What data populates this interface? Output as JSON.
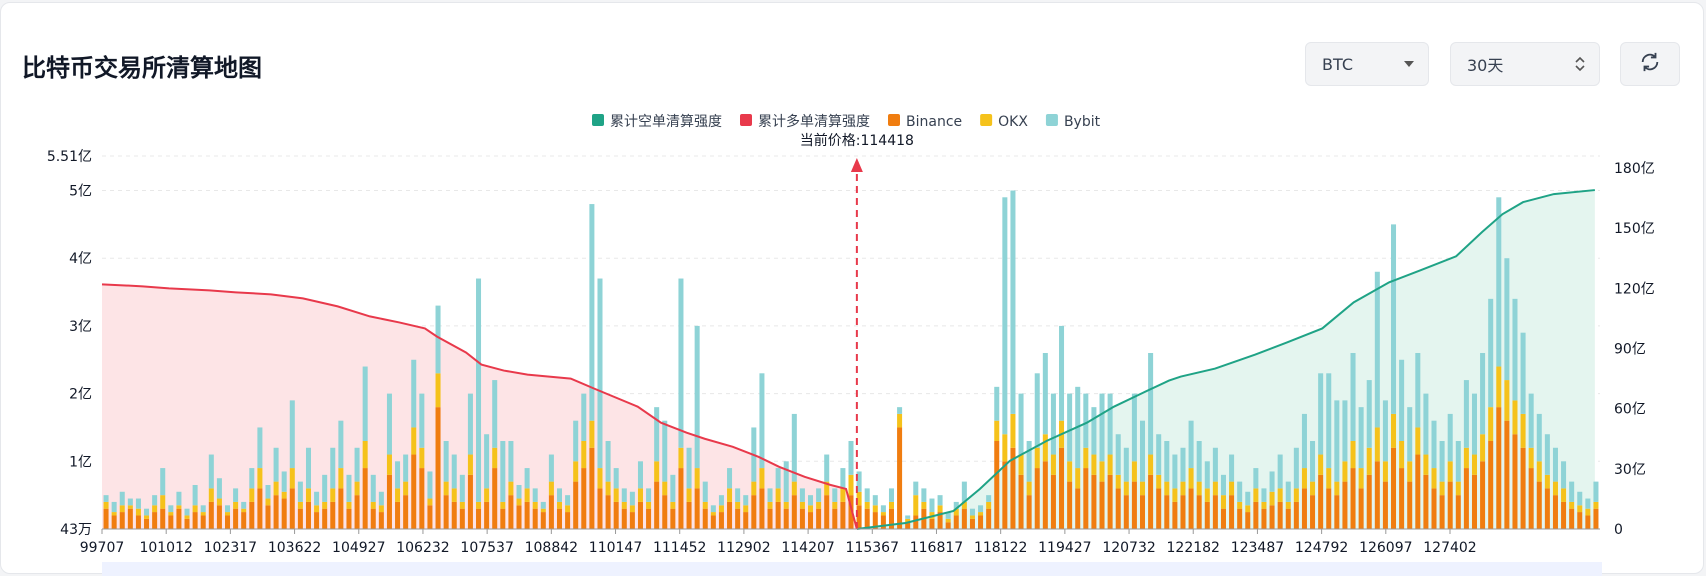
{
  "header": {
    "title": "比特币交易所清算地图",
    "asset_select": "BTC",
    "range_select": "30天"
  },
  "colors": {
    "short_cum": "#1fa386",
    "long_cum": "#e8394b",
    "binance": "#f07d10",
    "okx": "#f5c21b",
    "bybit": "#8ed3d6",
    "short_area": "#e4f5ef",
    "long_area": "#fde4e6",
    "current_price": "#e8394b"
  },
  "chart_data": {
    "type": "bar",
    "title": "比特币交易所清算地图",
    "current_price_label": "当前价格:114418",
    "current_price": 114418,
    "legend": [
      "累计空单清算强度",
      "累计多单清算强度",
      "Binance",
      "OKX",
      "Bybit"
    ],
    "x_tick_labels": [
      "99707",
      "101012",
      "102317",
      "103622",
      "104927",
      "106232",
      "107537",
      "108842",
      "110147",
      "111452",
      "112902",
      "114207",
      "115367",
      "116817",
      "118122",
      "119427",
      "120732",
      "122182",
      "123487",
      "124792",
      "126097",
      "127402"
    ],
    "x_range": [
      99707,
      128900
    ],
    "y_left": {
      "ticks": [
        "5.51亿",
        "5亿",
        "4亿",
        "3亿",
        "2亿",
        "1亿",
        "43万"
      ],
      "values": [
        5.51,
        5,
        4,
        3,
        2,
        1,
        0
      ]
    },
    "y_right": {
      "ticks": [
        "180亿",
        "150亿",
        "120亿",
        "90亿",
        "60亿",
        "30亿",
        "0"
      ],
      "values": [
        180,
        150,
        120,
        90,
        60,
        30,
        0
      ]
    },
    "unit_left": "亿",
    "unit_right": "亿",
    "long_cumulative": {
      "name": "累计多单清算强度",
      "points": [
        [
          99707,
          122
        ],
        [
          100500,
          121
        ],
        [
          101012,
          120
        ],
        [
          101800,
          119
        ],
        [
          102317,
          118
        ],
        [
          103000,
          117
        ],
        [
          103622,
          115
        ],
        [
          104300,
          111
        ],
        [
          104927,
          106
        ],
        [
          105500,
          103
        ],
        [
          106000,
          100
        ],
        [
          106232,
          96
        ],
        [
          106800,
          88
        ],
        [
          107100,
          82
        ],
        [
          107537,
          79
        ],
        [
          108000,
          77
        ],
        [
          108842,
          75
        ],
        [
          109300,
          70
        ],
        [
          110147,
          61
        ],
        [
          110600,
          53
        ],
        [
          111100,
          48
        ],
        [
          111452,
          45
        ],
        [
          112000,
          41
        ],
        [
          112500,
          36
        ],
        [
          112902,
          31
        ],
        [
          113400,
          26
        ],
        [
          113900,
          22
        ],
        [
          114207,
          20
        ],
        [
          114418,
          0
        ]
      ]
    },
    "short_cumulative": {
      "name": "累计空单清算强度",
      "points": [
        [
          114418,
          0
        ],
        [
          115367,
          3
        ],
        [
          116300,
          9
        ],
        [
          116817,
          20
        ],
        [
          117400,
          34
        ],
        [
          118122,
          44
        ],
        [
          118900,
          53
        ],
        [
          119427,
          61
        ],
        [
          120000,
          68
        ],
        [
          120500,
          74
        ],
        [
          120732,
          76
        ],
        [
          121400,
          80
        ],
        [
          122182,
          87
        ],
        [
          122800,
          93
        ],
        [
          123487,
          100
        ],
        [
          124100,
          113
        ],
        [
          124792,
          123
        ],
        [
          125400,
          129
        ],
        [
          126097,
          136
        ],
        [
          126600,
          148
        ],
        [
          127000,
          157
        ],
        [
          127402,
          163
        ],
        [
          128000,
          167
        ],
        [
          128800,
          169
        ]
      ]
    },
    "stacked_bars": {
      "series": [
        "Binance",
        "OKX",
        "Bybit"
      ],
      "unit": "亿",
      "bins": [
        [
          0.3,
          0.1,
          0.1
        ],
        [
          0.2,
          0.05,
          0.15
        ],
        [
          0.25,
          0.1,
          0.2
        ],
        [
          0.3,
          0.05,
          0.1
        ],
        [
          0.2,
          0.1,
          0.15
        ],
        [
          0.15,
          0.05,
          0.1
        ],
        [
          0.25,
          0.1,
          0.15
        ],
        [
          0.3,
          0.2,
          0.4
        ],
        [
          0.2,
          0.05,
          0.1
        ],
        [
          0.3,
          0.05,
          0.2
        ],
        [
          0.15,
          0.05,
          0.1
        ],
        [
          0.25,
          0.1,
          0.3
        ],
        [
          0.2,
          0.05,
          0.1
        ],
        [
          0.4,
          0.2,
          0.5
        ],
        [
          0.35,
          0.1,
          0.3
        ],
        [
          0.2,
          0.05,
          0.1
        ],
        [
          0.3,
          0.1,
          0.2
        ],
        [
          0.25,
          0.05,
          0.1
        ],
        [
          0.4,
          0.2,
          0.3
        ],
        [
          0.6,
          0.3,
          0.6
        ],
        [
          0.35,
          0.1,
          0.2
        ],
        [
          0.5,
          0.2,
          0.5
        ],
        [
          0.45,
          0.1,
          0.3
        ],
        [
          0.6,
          0.3,
          1.0
        ],
        [
          0.3,
          0.1,
          0.3
        ],
        [
          0.4,
          0.2,
          0.6
        ],
        [
          0.25,
          0.1,
          0.2
        ],
        [
          0.3,
          0.1,
          0.4
        ],
        [
          0.4,
          0.2,
          0.6
        ],
        [
          0.6,
          0.3,
          0.7
        ],
        [
          0.3,
          0.1,
          0.4
        ],
        [
          0.5,
          0.2,
          0.5
        ],
        [
          0.9,
          0.4,
          1.1
        ],
        [
          0.3,
          0.1,
          0.4
        ],
        [
          0.25,
          0.1,
          0.2
        ],
        [
          0.8,
          0.3,
          0.9
        ],
        [
          0.4,
          0.2,
          0.4
        ],
        [
          0.5,
          0.2,
          0.4
        ],
        [
          1.1,
          0.4,
          1.0
        ],
        [
          0.9,
          0.3,
          0.8
        ],
        [
          0.35,
          0.1,
          0.4
        ],
        [
          1.8,
          0.5,
          1.0
        ],
        [
          0.5,
          0.2,
          0.6
        ],
        [
          0.4,
          0.2,
          0.5
        ],
        [
          0.3,
          0.1,
          0.4
        ],
        [
          0.8,
          0.3,
          0.9
        ],
        [
          0.3,
          0.1,
          3.3
        ],
        [
          0.4,
          0.2,
          0.8
        ],
        [
          0.9,
          0.3,
          1.0
        ],
        [
          0.3,
          0.1,
          0.9
        ],
        [
          0.5,
          0.2,
          0.6
        ],
        [
          0.35,
          0.1,
          0.2
        ],
        [
          0.4,
          0.2,
          0.3
        ],
        [
          0.3,
          0.1,
          0.2
        ],
        [
          0.25,
          0.05,
          0.1
        ],
        [
          0.5,
          0.2,
          0.4
        ],
        [
          0.3,
          0.1,
          0.2
        ],
        [
          0.25,
          0.1,
          0.15
        ],
        [
          0.7,
          0.3,
          0.6
        ],
        [
          0.9,
          0.4,
          0.7
        ],
        [
          1.2,
          0.4,
          3.2
        ],
        [
          0.6,
          0.3,
          2.8
        ],
        [
          0.5,
          0.2,
          0.6
        ],
        [
          0.4,
          0.2,
          0.3
        ],
        [
          0.3,
          0.1,
          0.2
        ],
        [
          0.25,
          0.1,
          0.2
        ],
        [
          0.4,
          0.2,
          0.4
        ],
        [
          0.3,
          0.1,
          0.2
        ],
        [
          0.7,
          0.3,
          0.8
        ],
        [
          0.5,
          0.2,
          0.9
        ],
        [
          0.3,
          0.1,
          0.4
        ],
        [
          0.9,
          0.3,
          2.5
        ],
        [
          0.4,
          0.2,
          0.6
        ],
        [
          0.6,
          0.3,
          2.1
        ],
        [
          0.3,
          0.1,
          0.3
        ],
        [
          0.2,
          0.05,
          0.1
        ],
        [
          0.25,
          0.1,
          0.15
        ],
        [
          0.4,
          0.2,
          0.3
        ],
        [
          0.3,
          0.1,
          0.2
        ],
        [
          0.25,
          0.1,
          0.15
        ],
        [
          0.5,
          0.2,
          0.8
        ],
        [
          0.6,
          0.3,
          1.4
        ],
        [
          0.3,
          0.1,
          0.2
        ],
        [
          0.4,
          0.2,
          0.3
        ],
        [
          0.3,
          0.1,
          0.6
        ],
        [
          0.5,
          0.2,
          1.0
        ],
        [
          0.3,
          0.1,
          0.2
        ],
        [
          0.25,
          0.1,
          0.15
        ],
        [
          0.3,
          0.1,
          0.2
        ],
        [
          0.5,
          0.2,
          0.4
        ],
        [
          0.3,
          0.1,
          0.2
        ],
        [
          0.4,
          0.2,
          0.3
        ],
        [
          0.5,
          0.3,
          0.5
        ],
        [
          0.35,
          0.2,
          0.3
        ],
        [
          0.3,
          0.1,
          0.2
        ],
        [
          0.25,
          0.1,
          0.15
        ],
        [
          0.2,
          0.05,
          0.1
        ],
        [
          0.3,
          0.1,
          0.2
        ],
        [
          1.5,
          0.2,
          0.1
        ],
        [
          0.1,
          0.05,
          0.05
        ],
        [
          0.2,
          0.3,
          0.2
        ],
        [
          0.3,
          0.1,
          0.2
        ],
        [
          0.15,
          0.1,
          0.2
        ],
        [
          0.25,
          0.1,
          0.15
        ],
        [
          0.1,
          0.05,
          0.1
        ],
        [
          0.2,
          0.1,
          0.1
        ],
        [
          0.3,
          0.1,
          0.3
        ],
        [
          0.15,
          0.05,
          0.1
        ],
        [
          0.2,
          0.05,
          0.1
        ],
        [
          0.3,
          0.1,
          0.1
        ],
        [
          1.3,
          0.3,
          0.5
        ],
        [
          1.0,
          0.4,
          3.5
        ],
        [
          1.2,
          0.5,
          3.3
        ],
        [
          0.8,
          0.3,
          0.9
        ],
        [
          0.5,
          0.2,
          0.6
        ],
        [
          0.9,
          0.3,
          1.1
        ],
        [
          1.0,
          0.4,
          1.2
        ],
        [
          0.8,
          0.3,
          0.9
        ],
        [
          1.2,
          0.4,
          1.4
        ],
        [
          0.7,
          0.3,
          1.0
        ],
        [
          0.6,
          0.3,
          1.2
        ],
        [
          0.9,
          0.3,
          0.8
        ],
        [
          0.8,
          0.3,
          0.7
        ],
        [
          0.7,
          0.3,
          1.0
        ],
        [
          0.8,
          0.3,
          0.9
        ],
        [
          0.6,
          0.2,
          0.6
        ],
        [
          0.5,
          0.2,
          0.5
        ],
        [
          0.7,
          0.3,
          1.0
        ],
        [
          0.5,
          0.2,
          0.9
        ],
        [
          0.8,
          0.3,
          1.5
        ],
        [
          0.6,
          0.2,
          0.6
        ],
        [
          0.5,
          0.2,
          0.6
        ],
        [
          0.4,
          0.2,
          0.5
        ],
        [
          0.5,
          0.2,
          0.5
        ],
        [
          0.6,
          0.3,
          0.7
        ],
        [
          0.5,
          0.2,
          0.6
        ],
        [
          0.4,
          0.2,
          0.4
        ],
        [
          0.5,
          0.2,
          0.5
        ],
        [
          0.3,
          0.2,
          0.3
        ],
        [
          0.5,
          0.2,
          0.4
        ],
        [
          0.3,
          0.1,
          0.3
        ],
        [
          0.25,
          0.1,
          0.2
        ],
        [
          0.4,
          0.2,
          0.3
        ],
        [
          0.3,
          0.1,
          0.2
        ],
        [
          0.35,
          0.2,
          0.3
        ],
        [
          0.4,
          0.2,
          0.5
        ],
        [
          0.3,
          0.1,
          0.3
        ],
        [
          0.4,
          0.2,
          0.6
        ],
        [
          0.6,
          0.3,
          0.8
        ],
        [
          0.5,
          0.2,
          0.6
        ],
        [
          0.8,
          0.3,
          1.2
        ],
        [
          0.6,
          0.3,
          1.4
        ],
        [
          0.5,
          0.2,
          1.2
        ],
        [
          0.7,
          0.3,
          0.9
        ],
        [
          0.9,
          0.4,
          1.3
        ],
        [
          0.6,
          0.3,
          0.9
        ],
        [
          0.8,
          0.4,
          1.0
        ],
        [
          1.0,
          0.5,
          2.3
        ],
        [
          0.7,
          0.3,
          0.9
        ],
        [
          1.2,
          0.5,
          2.8
        ],
        [
          0.9,
          0.4,
          1.2
        ],
        [
          0.7,
          0.3,
          0.8
        ],
        [
          1.1,
          0.4,
          1.1
        ],
        [
          0.8,
          0.3,
          0.9
        ],
        [
          0.6,
          0.3,
          0.7
        ],
        [
          0.5,
          0.2,
          0.6
        ],
        [
          0.7,
          0.3,
          0.7
        ],
        [
          0.5,
          0.2,
          0.6
        ],
        [
          0.9,
          0.3,
          1.0
        ],
        [
          0.8,
          0.3,
          0.9
        ],
        [
          1.0,
          0.4,
          1.2
        ],
        [
          1.3,
          0.5,
          1.6
        ],
        [
          1.8,
          0.6,
          2.5
        ],
        [
          1.6,
          0.6,
          1.8
        ],
        [
          1.4,
          0.5,
          1.5
        ],
        [
          1.2,
          0.5,
          1.2
        ],
        [
          0.9,
          0.3,
          0.8
        ],
        [
          0.7,
          0.3,
          0.7
        ],
        [
          0.6,
          0.2,
          0.6
        ],
        [
          0.5,
          0.2,
          0.5
        ],
        [
          0.4,
          0.2,
          0.4
        ],
        [
          0.3,
          0.1,
          0.3
        ],
        [
          0.25,
          0.1,
          0.2
        ],
        [
          0.2,
          0.1,
          0.15
        ],
        [
          0.3,
          0.1,
          0.3
        ]
      ]
    }
  }
}
